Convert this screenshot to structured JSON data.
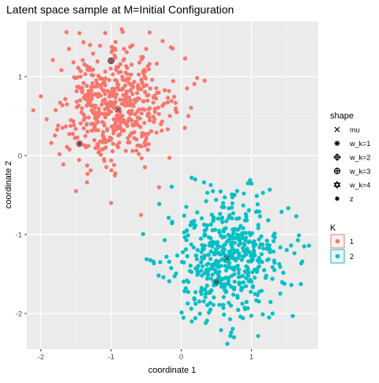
{
  "chart_data": {
    "type": "scatter",
    "title": "Latent space sample at M=Initial Configuration",
    "xlabel": "coordinate 1",
    "ylabel": "coordinate 2",
    "xlim": [
      -2.2,
      1.95
    ],
    "ylim": [
      -2.45,
      1.7
    ],
    "x_ticks": [
      -2,
      -1,
      0,
      1
    ],
    "y_ticks": [
      -2,
      -1,
      0,
      1
    ],
    "x_tick_labels": [
      "-2",
      "-1",
      "0",
      "1"
    ],
    "y_tick_labels": [
      "-2",
      "-1",
      "0",
      "1"
    ],
    "grid": true,
    "legend_placement": "right",
    "legends": {
      "shape": {
        "title": "shape",
        "entries": [
          {
            "label": "mu",
            "symbol": "cross"
          },
          {
            "label": "w_k=1",
            "symbol": "asterisk"
          },
          {
            "label": "w_k=2",
            "symbol": "diamond-plus"
          },
          {
            "label": "w_k=3",
            "symbol": "circle-plus"
          },
          {
            "label": "w_k=4",
            "symbol": "star-of-david"
          },
          {
            "label": "z",
            "symbol": "dot"
          }
        ]
      },
      "K": {
        "title": "K",
        "entries": [
          {
            "label": "1",
            "color": "#F8766D"
          },
          {
            "label": "2",
            "color": "#00BFC4"
          }
        ]
      }
    },
    "series": [
      {
        "name": "1",
        "color": "#F8766D",
        "center": [
          -0.95,
          0.6
        ],
        "spread": [
          0.4,
          0.38
        ],
        "n_points": 520,
        "key_points": [
          [
            -1.45,
            1.55
          ],
          [
            -0.85,
            1.6
          ],
          [
            -1.6,
            1.35
          ],
          [
            -1.3,
            1.4
          ],
          [
            -0.5,
            1.35
          ],
          [
            -2.0,
            0.75
          ],
          [
            -1.5,
            -0.45
          ],
          [
            -1.0,
            -0.6
          ],
          [
            0.05,
            0.35
          ],
          [
            0.1,
            0.5
          ]
        ],
        "markers": [
          {
            "shape": "asterisk",
            "x": -1.45,
            "y": 0.15
          },
          {
            "shape": "circle-plus",
            "x": -1.0,
            "y": 1.2
          },
          {
            "shape": "cross",
            "x": -0.9,
            "y": 0.58
          }
        ]
      },
      {
        "name": "2",
        "color": "#00BFC4",
        "center": [
          0.65,
          -1.3
        ],
        "spread": [
          0.4,
          0.38
        ],
        "n_points": 520,
        "key_points": [
          [
            0.75,
            -2.3
          ],
          [
            1.25,
            -2.05
          ],
          [
            0.95,
            -0.35
          ],
          [
            0.45,
            -0.45
          ],
          [
            -0.3,
            -1.35
          ],
          [
            1.75,
            -1.15
          ],
          [
            1.3,
            -2.0
          ],
          [
            0.15,
            -2.1
          ]
        ],
        "markers": [
          {
            "shape": "asterisk",
            "x": 0.5,
            "y": -1.6
          },
          {
            "shape": "cross",
            "x": 0.65,
            "y": -1.3
          }
        ]
      }
    ]
  }
}
